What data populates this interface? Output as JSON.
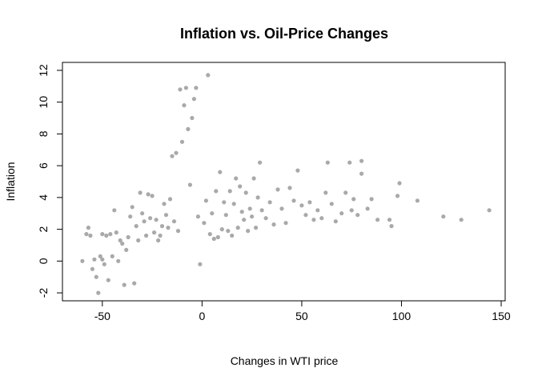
{
  "chart_data": {
    "type": "scatter",
    "title": "Inflation vs. Oil-Price Changes",
    "xlabel": "Changes in WTI price",
    "ylabel": "Inflation",
    "xlim": [
      -70,
      152
    ],
    "ylim": [
      -2.5,
      12.5
    ],
    "xticks": [
      -50,
      0,
      50,
      100,
      150
    ],
    "yticks": [
      -2,
      0,
      2,
      4,
      6,
      8,
      10,
      12
    ],
    "grid": false,
    "legend": "none",
    "point_color": "#a9a9a9",
    "points": [
      [
        -60,
        0.0
      ],
      [
        -58,
        1.7
      ],
      [
        -57,
        2.1
      ],
      [
        -56,
        1.6
      ],
      [
        -55,
        -0.5
      ],
      [
        -54,
        0.1
      ],
      [
        -53,
        -1.0
      ],
      [
        -52,
        -2.0
      ],
      [
        -51,
        0.3
      ],
      [
        -50,
        1.7
      ],
      [
        -50,
        0.1
      ],
      [
        -49,
        -0.2
      ],
      [
        -48,
        1.6
      ],
      [
        -47,
        -1.2
      ],
      [
        -46,
        1.7
      ],
      [
        -45,
        0.3
      ],
      [
        -44,
        3.2
      ],
      [
        -43,
        1.8
      ],
      [
        -42,
        0.0
      ],
      [
        -41,
        1.3
      ],
      [
        -40,
        1.1
      ],
      [
        -39,
        -1.5
      ],
      [
        -38,
        0.7
      ],
      [
        -37,
        1.5
      ],
      [
        -36,
        2.8
      ],
      [
        -35,
        3.4
      ],
      [
        -34,
        -1.4
      ],
      [
        -33,
        2.2
      ],
      [
        -32,
        1.3
      ],
      [
        -31,
        4.3
      ],
      [
        -30,
        3.0
      ],
      [
        -29,
        2.5
      ],
      [
        -28,
        1.6
      ],
      [
        -27,
        4.2
      ],
      [
        -26,
        2.7
      ],
      [
        -25,
        4.1
      ],
      [
        -24,
        1.8
      ],
      [
        -23,
        2.6
      ],
      [
        -22,
        1.3
      ],
      [
        -21,
        1.6
      ],
      [
        -20,
        2.2
      ],
      [
        -19,
        3.6
      ],
      [
        -18,
        2.9
      ],
      [
        -17,
        2.1
      ],
      [
        -16,
        3.9
      ],
      [
        -15,
        6.6
      ],
      [
        -14,
        2.5
      ],
      [
        -13,
        6.8
      ],
      [
        -12,
        1.9
      ],
      [
        -11,
        10.8
      ],
      [
        -10,
        7.5
      ],
      [
        -9,
        9.8
      ],
      [
        -8,
        10.9
      ],
      [
        -7,
        8.3
      ],
      [
        -6,
        4.8
      ],
      [
        -5,
        9.0
      ],
      [
        -4,
        10.2
      ],
      [
        -3,
        10.9
      ],
      [
        -2,
        2.8
      ],
      [
        -1,
        -0.2
      ],
      [
        1,
        2.4
      ],
      [
        2,
        3.8
      ],
      [
        3,
        11.7
      ],
      [
        4,
        1.7
      ],
      [
        5,
        3.0
      ],
      [
        6,
        1.4
      ],
      [
        7,
        4.4
      ],
      [
        8,
        1.5
      ],
      [
        9,
        5.6
      ],
      [
        10,
        2.0
      ],
      [
        11,
        3.7
      ],
      [
        12,
        2.9
      ],
      [
        13,
        1.9
      ],
      [
        14,
        4.4
      ],
      [
        15,
        1.6
      ],
      [
        16,
        3.6
      ],
      [
        17,
        5.2
      ],
      [
        18,
        2.1
      ],
      [
        19,
        4.7
      ],
      [
        20,
        3.1
      ],
      [
        21,
        2.6
      ],
      [
        22,
        4.3
      ],
      [
        23,
        1.9
      ],
      [
        24,
        3.3
      ],
      [
        25,
        2.8
      ],
      [
        26,
        5.2
      ],
      [
        27,
        2.1
      ],
      [
        28,
        4.0
      ],
      [
        29,
        6.2
      ],
      [
        30,
        3.2
      ],
      [
        32,
        2.7
      ],
      [
        34,
        3.7
      ],
      [
        36,
        2.3
      ],
      [
        38,
        4.5
      ],
      [
        40,
        3.3
      ],
      [
        42,
        2.4
      ],
      [
        44,
        4.6
      ],
      [
        46,
        3.8
      ],
      [
        48,
        5.7
      ],
      [
        50,
        3.5
      ],
      [
        52,
        2.9
      ],
      [
        54,
        3.7
      ],
      [
        56,
        2.6
      ],
      [
        58,
        3.2
      ],
      [
        60,
        2.7
      ],
      [
        62,
        4.3
      ],
      [
        63,
        6.2
      ],
      [
        65,
        3.6
      ],
      [
        67,
        2.5
      ],
      [
        70,
        3.0
      ],
      [
        72,
        4.3
      ],
      [
        74,
        6.2
      ],
      [
        75,
        3.2
      ],
      [
        76,
        3.9
      ],
      [
        78,
        2.9
      ],
      [
        80,
        6.3
      ],
      [
        80,
        5.5
      ],
      [
        83,
        3.3
      ],
      [
        85,
        3.9
      ],
      [
        88,
        2.6
      ],
      [
        94,
        2.6
      ],
      [
        95,
        2.2
      ],
      [
        98,
        4.1
      ],
      [
        99,
        4.9
      ],
      [
        108,
        3.8
      ],
      [
        121,
        2.8
      ],
      [
        130,
        2.6
      ],
      [
        144,
        3.2
      ]
    ]
  }
}
